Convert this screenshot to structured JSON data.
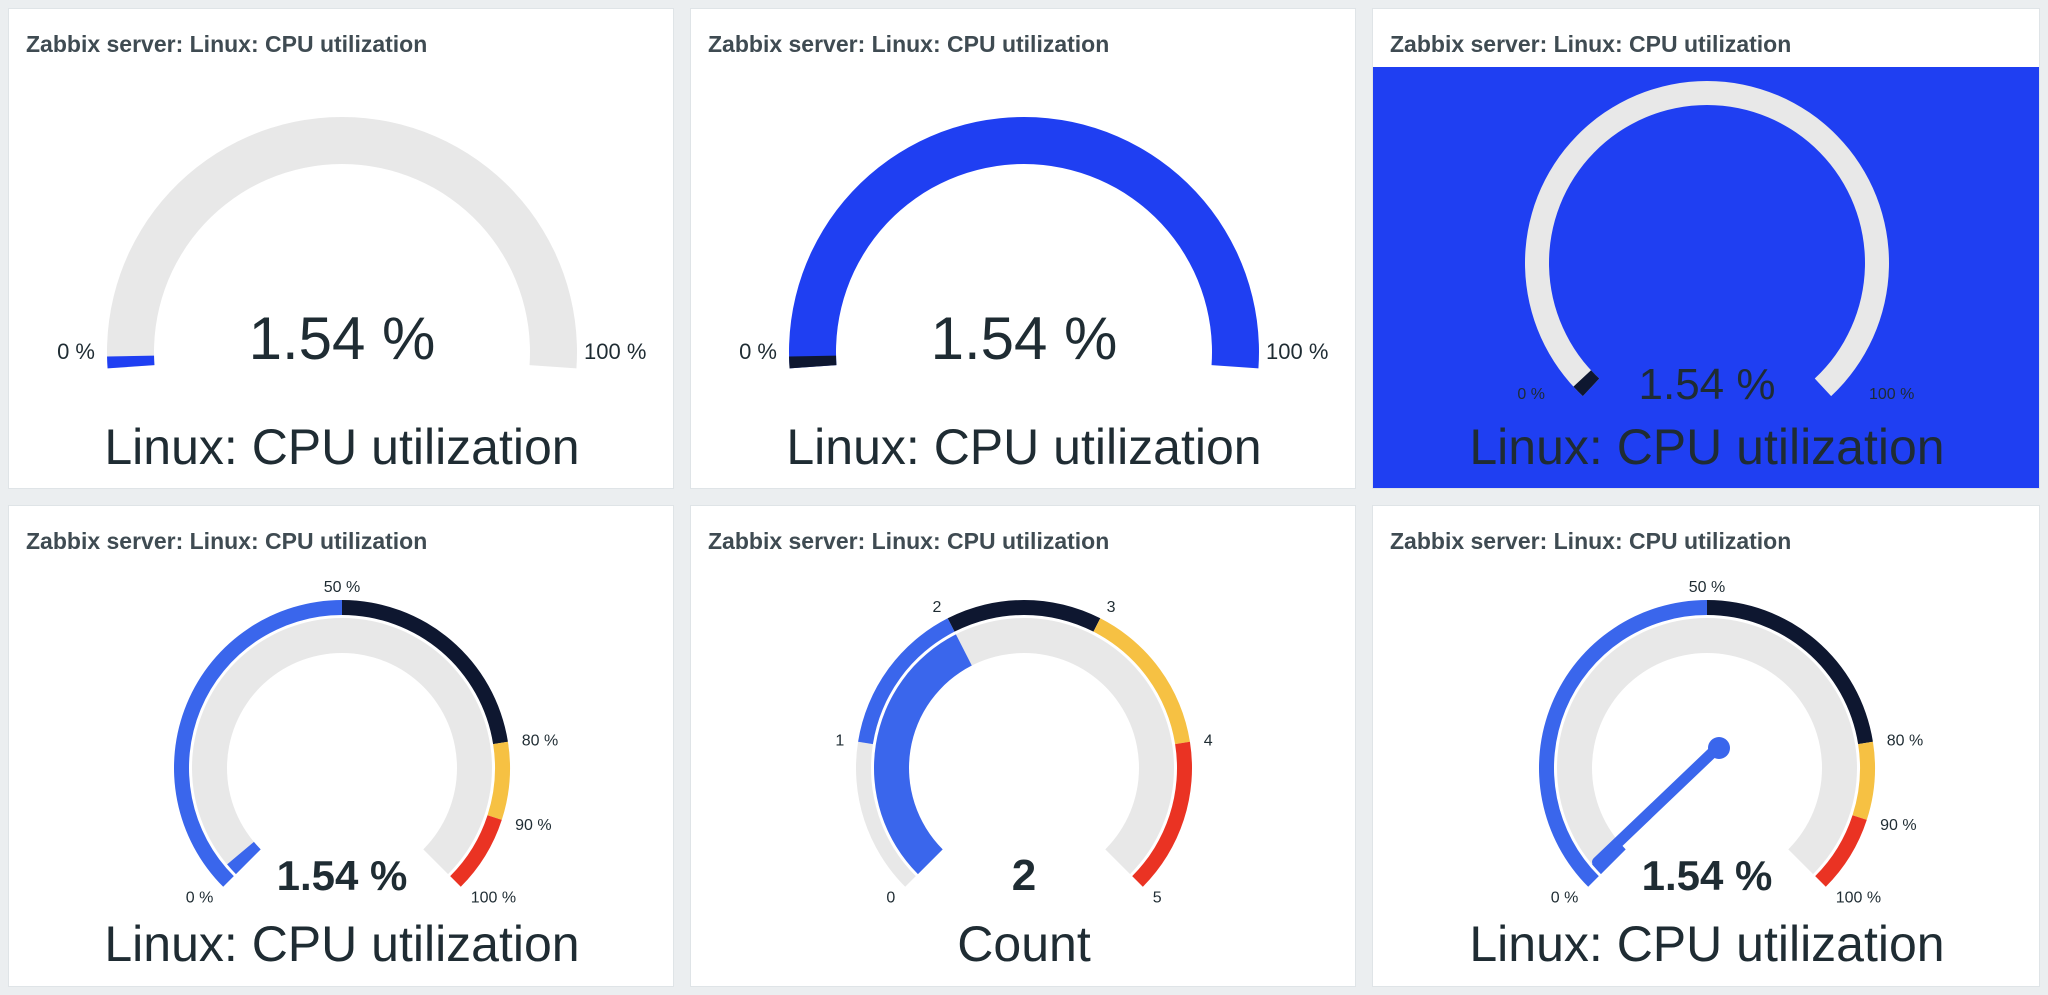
{
  "widgets": [
    {
      "header": "Zabbix server: Linux: CPU utilization",
      "value": "1.54 %",
      "description": "Linux: CPU utilization",
      "min_label": "0 %",
      "max_label": "100 %",
      "value_fraction": 0.0154,
      "background": "#ffffff",
      "arc_color": "#e8e8e8",
      "value_color": "#1f3ff2"
    },
    {
      "header": "Zabbix server: Linux: CPU utilization",
      "value": "1.54 %",
      "description": "Linux: CPU utilization",
      "min_label": "0 %",
      "max_label": "100 %",
      "value_fraction": 0.0154,
      "background": "#ffffff",
      "arc_color": "#1f3ff2",
      "value_color": "#0e1730"
    },
    {
      "header": "Zabbix server: Linux: CPU utilization",
      "value": "1.54 %",
      "description": "Linux: CPU utilization",
      "min_label": "0 %",
      "max_label": "100 %",
      "value_fraction": 0.0154,
      "background": "#1f3ff2",
      "arc_color": "#e8e8e8",
      "value_color": "#0e1730"
    },
    {
      "header": "Zabbix server: Linux: CPU utilization",
      "value": "1.54 %",
      "description": "Linux: CPU utilization",
      "value_fraction": 0.0154,
      "thresholds": [
        {
          "label": "0 %"
        },
        {
          "label": "50 %"
        },
        {
          "label": "80 %"
        },
        {
          "label": "90 %"
        },
        {
          "label": "100 %"
        }
      ],
      "threshold_colors": [
        "#3a66ec",
        "#0e1730",
        "#f6c143",
        "#ea3323"
      ]
    },
    {
      "header": "Zabbix server: Linux: CPU utilization",
      "value": "2",
      "description": "Count",
      "value_fraction": 0.4,
      "thresholds": [
        {
          "label": "0"
        },
        {
          "label": "1"
        },
        {
          "label": "2"
        },
        {
          "label": "3"
        },
        {
          "label": "4"
        },
        {
          "label": "5"
        }
      ],
      "threshold_colors": [
        "#e8e8e8",
        "#3a66ec",
        "#0e1730",
        "#f6c143",
        "#ea3323"
      ]
    },
    {
      "header": "Zabbix server: Linux: CPU utilization",
      "value": "1.54 %",
      "description": "Linux: CPU utilization",
      "value_fraction": 0.0154,
      "thresholds": [
        {
          "label": "0 %"
        },
        {
          "label": "50 %"
        },
        {
          "label": "80 %"
        },
        {
          "label": "90 %"
        },
        {
          "label": "100 %"
        }
      ],
      "threshold_colors": [
        "#3a66ec",
        "#0e1730",
        "#f6c143",
        "#ea3323"
      ],
      "needle": true
    }
  ]
}
